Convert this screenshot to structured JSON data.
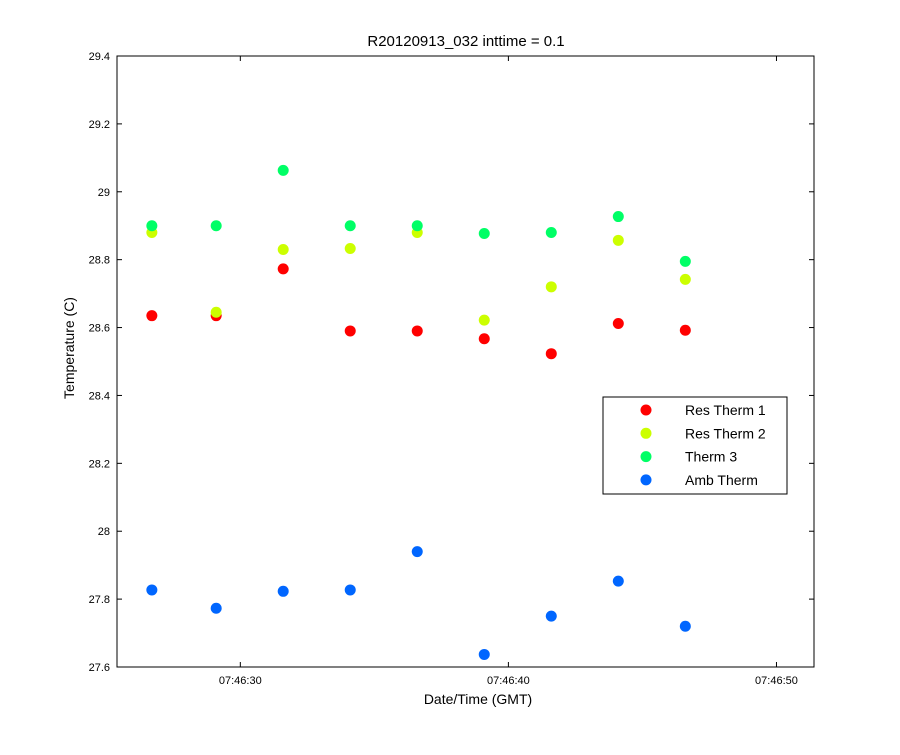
{
  "chart_data": {
    "type": "scatter",
    "title": "R20120913_032 inttime = 0.1",
    "xlabel": "Date/Time (GMT)",
    "ylabel": "Temperature (C)",
    "x_unit": "time_hh:mm:ss",
    "xlim": [
      "07:46:25.4",
      "07:46:51.4"
    ],
    "ylim": [
      27.6,
      29.4
    ],
    "xticks": [
      "07:46:30",
      "07:46:40",
      "07:46:50"
    ],
    "yticks": [
      "27.6",
      "27.8",
      "28",
      "28.2",
      "28.4",
      "28.6",
      "28.8",
      "29",
      "29.2",
      "29.4"
    ],
    "grid": false,
    "legend_position": "right",
    "x": [
      "07:46:26.7",
      "07:46:29.1",
      "07:46:31.6",
      "07:46:34.1",
      "07:46:36.6",
      "07:46:39.1",
      "07:46:41.6",
      "07:46:44.1",
      "07:46:46.6"
    ],
    "series": [
      {
        "name": "Res Therm 1",
        "color": "#ff0000",
        "values": [
          28.635,
          28.635,
          28.773,
          28.59,
          28.59,
          28.567,
          28.523,
          28.612,
          28.592
        ]
      },
      {
        "name": "Res Therm 2",
        "color": "#ccff00",
        "values": [
          28.88,
          28.645,
          28.83,
          28.833,
          28.88,
          28.622,
          28.72,
          28.857,
          28.742
        ]
      },
      {
        "name": "Therm 3",
        "color": "#00ff66",
        "values": [
          28.9,
          28.9,
          29.063,
          28.9,
          28.9,
          28.877,
          28.88,
          28.927,
          28.795
        ]
      },
      {
        "name": "Amb Therm",
        "color": "#0066ff",
        "values": [
          27.827,
          27.773,
          27.823,
          27.827,
          27.94,
          27.637,
          27.75,
          27.853,
          27.72
        ]
      }
    ]
  }
}
